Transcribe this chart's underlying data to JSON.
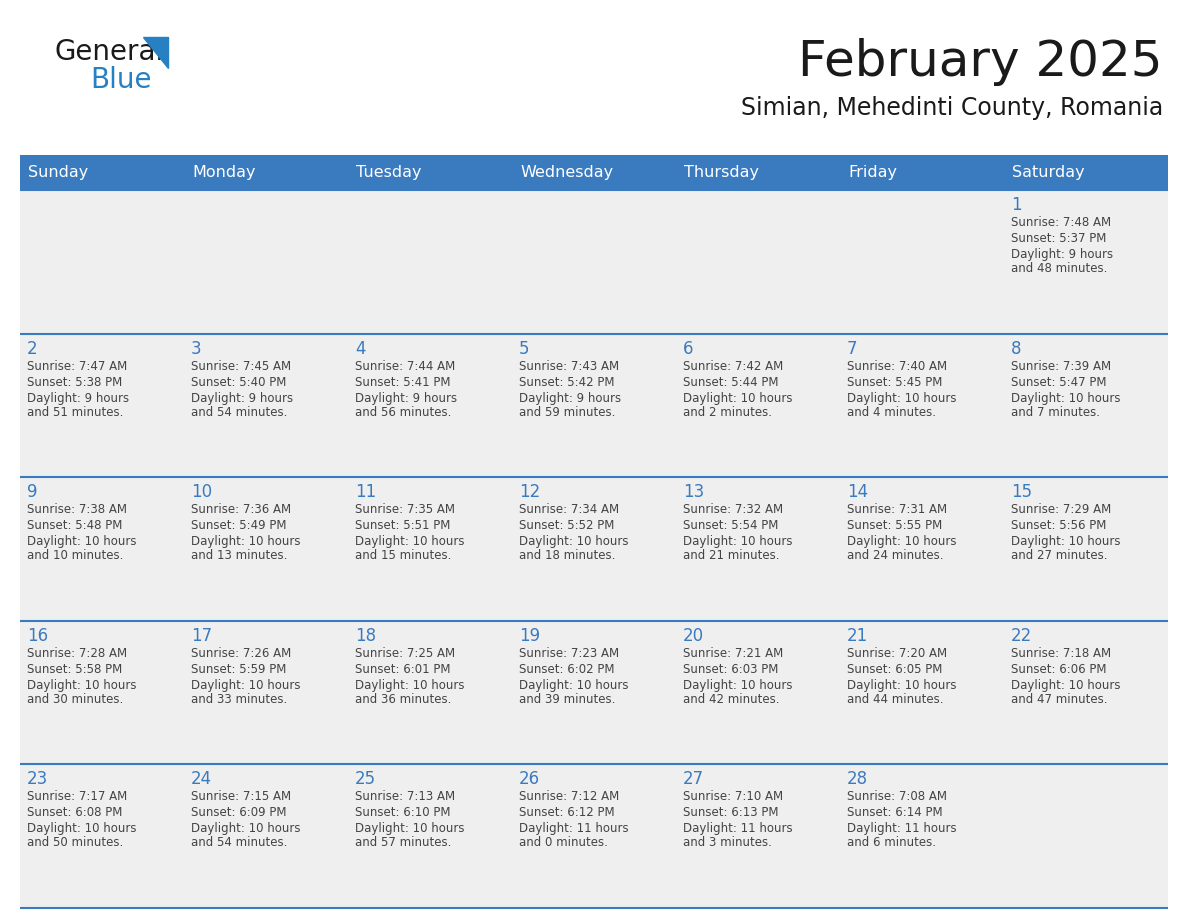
{
  "title": "February 2025",
  "subtitle": "Simian, Mehedinti County, Romania",
  "header_color": "#3a7abf",
  "header_text_color": "#ffffff",
  "day_names": [
    "Sunday",
    "Monday",
    "Tuesday",
    "Wednesday",
    "Thursday",
    "Friday",
    "Saturday"
  ],
  "background_color": "#ffffff",
  "cell_bg": "#efefef",
  "row_line_color": "#3a7abf",
  "day_num_color": "#3a7abf",
  "text_color": "#444444",
  "days": [
    {
      "day": 1,
      "col": 6,
      "row": 0,
      "sunrise": "7:48 AM",
      "sunset": "5:37 PM",
      "daylight": "9 hours and 48 minutes."
    },
    {
      "day": 2,
      "col": 0,
      "row": 1,
      "sunrise": "7:47 AM",
      "sunset": "5:38 PM",
      "daylight": "9 hours and 51 minutes."
    },
    {
      "day": 3,
      "col": 1,
      "row": 1,
      "sunrise": "7:45 AM",
      "sunset": "5:40 PM",
      "daylight": "9 hours and 54 minutes."
    },
    {
      "day": 4,
      "col": 2,
      "row": 1,
      "sunrise": "7:44 AM",
      "sunset": "5:41 PM",
      "daylight": "9 hours and 56 minutes."
    },
    {
      "day": 5,
      "col": 3,
      "row": 1,
      "sunrise": "7:43 AM",
      "sunset": "5:42 PM",
      "daylight": "9 hours and 59 minutes."
    },
    {
      "day": 6,
      "col": 4,
      "row": 1,
      "sunrise": "7:42 AM",
      "sunset": "5:44 PM",
      "daylight": "10 hours and 2 minutes."
    },
    {
      "day": 7,
      "col": 5,
      "row": 1,
      "sunrise": "7:40 AM",
      "sunset": "5:45 PM",
      "daylight": "10 hours and 4 minutes."
    },
    {
      "day": 8,
      "col": 6,
      "row": 1,
      "sunrise": "7:39 AM",
      "sunset": "5:47 PM",
      "daylight": "10 hours and 7 minutes."
    },
    {
      "day": 9,
      "col": 0,
      "row": 2,
      "sunrise": "7:38 AM",
      "sunset": "5:48 PM",
      "daylight": "10 hours and 10 minutes."
    },
    {
      "day": 10,
      "col": 1,
      "row": 2,
      "sunrise": "7:36 AM",
      "sunset": "5:49 PM",
      "daylight": "10 hours and 13 minutes."
    },
    {
      "day": 11,
      "col": 2,
      "row": 2,
      "sunrise": "7:35 AM",
      "sunset": "5:51 PM",
      "daylight": "10 hours and 15 minutes."
    },
    {
      "day": 12,
      "col": 3,
      "row": 2,
      "sunrise": "7:34 AM",
      "sunset": "5:52 PM",
      "daylight": "10 hours and 18 minutes."
    },
    {
      "day": 13,
      "col": 4,
      "row": 2,
      "sunrise": "7:32 AM",
      "sunset": "5:54 PM",
      "daylight": "10 hours and 21 minutes."
    },
    {
      "day": 14,
      "col": 5,
      "row": 2,
      "sunrise": "7:31 AM",
      "sunset": "5:55 PM",
      "daylight": "10 hours and 24 minutes."
    },
    {
      "day": 15,
      "col": 6,
      "row": 2,
      "sunrise": "7:29 AM",
      "sunset": "5:56 PM",
      "daylight": "10 hours and 27 minutes."
    },
    {
      "day": 16,
      "col": 0,
      "row": 3,
      "sunrise": "7:28 AM",
      "sunset": "5:58 PM",
      "daylight": "10 hours and 30 minutes."
    },
    {
      "day": 17,
      "col": 1,
      "row": 3,
      "sunrise": "7:26 AM",
      "sunset": "5:59 PM",
      "daylight": "10 hours and 33 minutes."
    },
    {
      "day": 18,
      "col": 2,
      "row": 3,
      "sunrise": "7:25 AM",
      "sunset": "6:01 PM",
      "daylight": "10 hours and 36 minutes."
    },
    {
      "day": 19,
      "col": 3,
      "row": 3,
      "sunrise": "7:23 AM",
      "sunset": "6:02 PM",
      "daylight": "10 hours and 39 minutes."
    },
    {
      "day": 20,
      "col": 4,
      "row": 3,
      "sunrise": "7:21 AM",
      "sunset": "6:03 PM",
      "daylight": "10 hours and 42 minutes."
    },
    {
      "day": 21,
      "col": 5,
      "row": 3,
      "sunrise": "7:20 AM",
      "sunset": "6:05 PM",
      "daylight": "10 hours and 44 minutes."
    },
    {
      "day": 22,
      "col": 6,
      "row": 3,
      "sunrise": "7:18 AM",
      "sunset": "6:06 PM",
      "daylight": "10 hours and 47 minutes."
    },
    {
      "day": 23,
      "col": 0,
      "row": 4,
      "sunrise": "7:17 AM",
      "sunset": "6:08 PM",
      "daylight": "10 hours and 50 minutes."
    },
    {
      "day": 24,
      "col": 1,
      "row": 4,
      "sunrise": "7:15 AM",
      "sunset": "6:09 PM",
      "daylight": "10 hours and 54 minutes."
    },
    {
      "day": 25,
      "col": 2,
      "row": 4,
      "sunrise": "7:13 AM",
      "sunset": "6:10 PM",
      "daylight": "10 hours and 57 minutes."
    },
    {
      "day": 26,
      "col": 3,
      "row": 4,
      "sunrise": "7:12 AM",
      "sunset": "6:12 PM",
      "daylight": "11 hours and 0 minutes."
    },
    {
      "day": 27,
      "col": 4,
      "row": 4,
      "sunrise": "7:10 AM",
      "sunset": "6:13 PM",
      "daylight": "11 hours and 3 minutes."
    },
    {
      "day": 28,
      "col": 5,
      "row": 4,
      "sunrise": "7:08 AM",
      "sunset": "6:14 PM",
      "daylight": "11 hours and 6 minutes."
    }
  ],
  "logo_color_general": "#1a1a1a",
  "logo_color_blue": "#2680c2"
}
